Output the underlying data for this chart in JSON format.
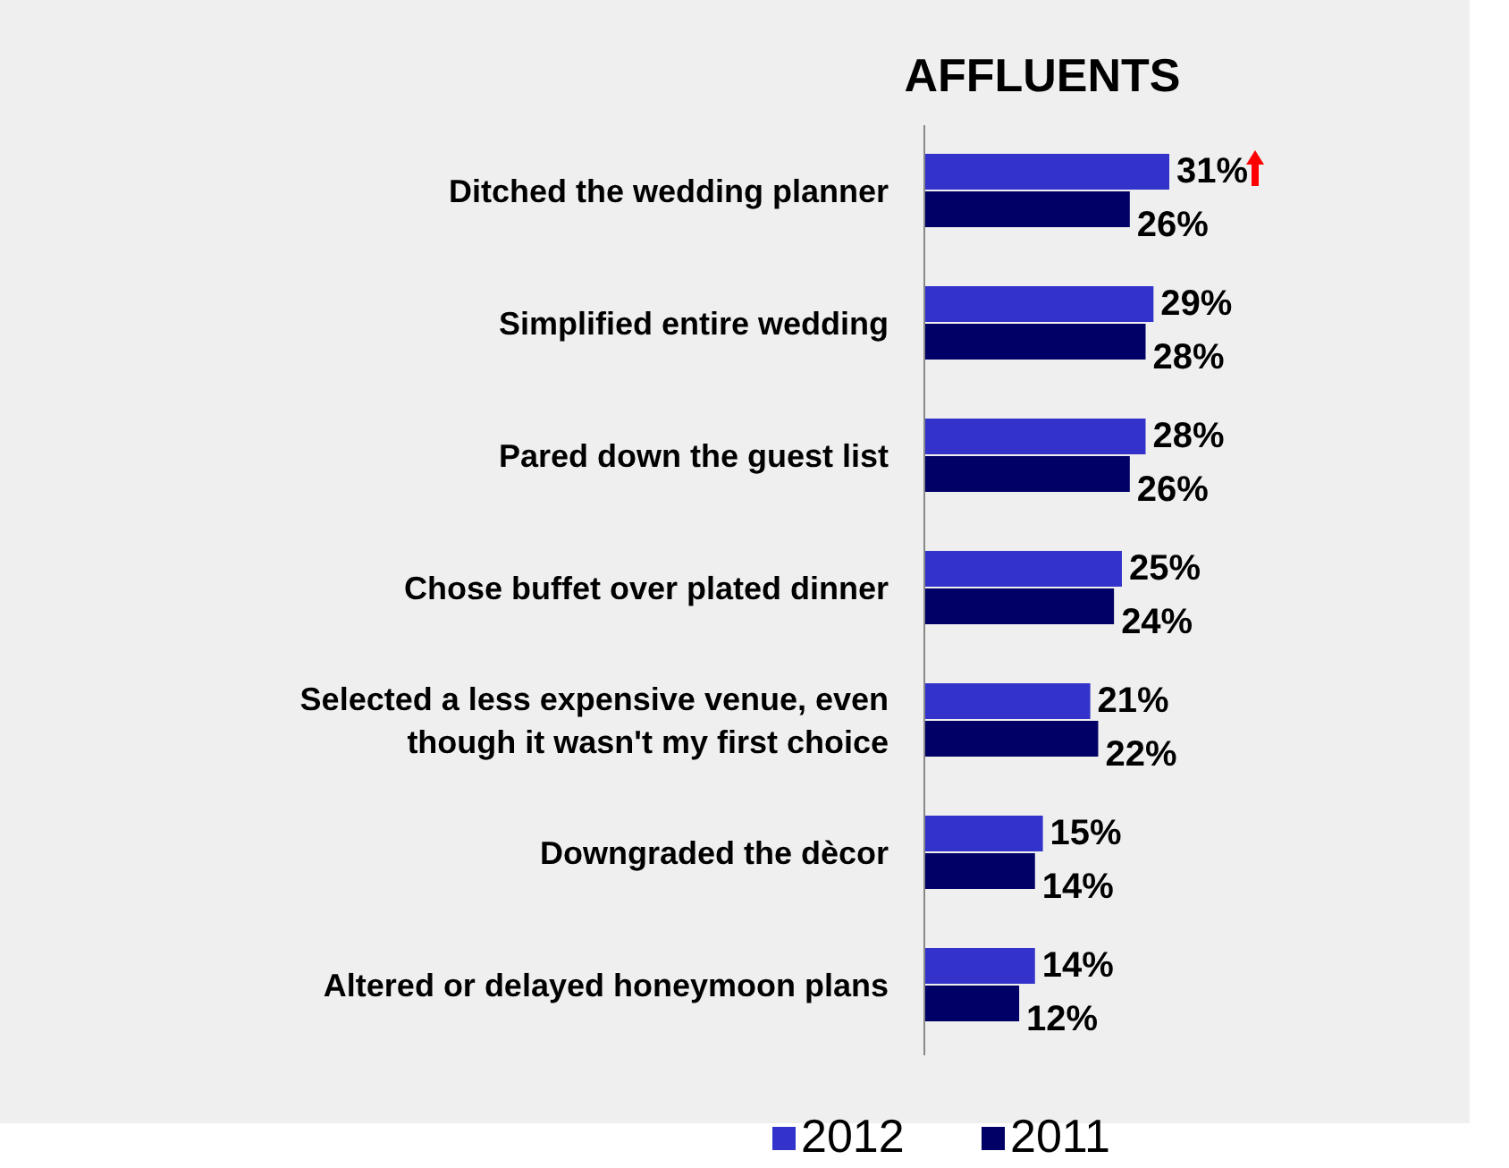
{
  "chart_data": {
    "type": "bar",
    "orientation": "horizontal",
    "title": "AFFLUENTS",
    "categories": [
      "Ditched the wedding planner",
      "Simplified entire wedding",
      "Pared down the guest list",
      "Chose buffet over plated dinner",
      "Selected a less expensive venue, even though it wasn't my first choice",
      "Downgraded the dècor",
      "Altered or delayed honeymoon plans"
    ],
    "series": [
      {
        "name": "2012",
        "color": "#3333cc",
        "values": [
          31,
          29,
          28,
          25,
          21,
          15,
          14
        ],
        "value_labels": [
          "31%",
          "29%",
          "28%",
          "25%",
          "21%",
          "15%",
          "14%"
        ]
      },
      {
        "name": "2011",
        "color": "#000066",
        "values": [
          26,
          28,
          26,
          24,
          22,
          14,
          12
        ],
        "value_labels": [
          "26%",
          "28%",
          "26%",
          "24%",
          "22%",
          "14%",
          "12%"
        ]
      }
    ],
    "legend": "bottom"
  }
}
